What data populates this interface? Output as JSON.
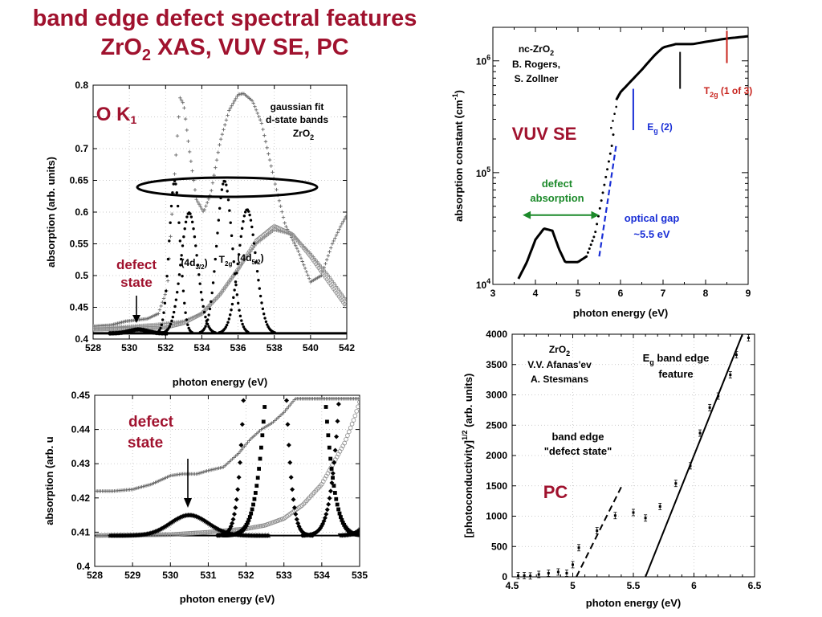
{
  "slide": {
    "title_line1": "band edge defect spectral features",
    "title_line2_a": "ZrO",
    "title_line2_sub": "2",
    "title_line2_b": " XAS, VUV SE, PC",
    "title_color": "#a0122e"
  },
  "chart_data": [
    {
      "id": "xas",
      "type": "scatter",
      "xlabel": "photon energy (eV)",
      "ylabel": "absorption (arb. units)",
      "xlim": [
        528,
        542
      ],
      "ylim": [
        0.4,
        0.8
      ],
      "xticks": [
        "528",
        "530",
        "532",
        "534",
        "536",
        "538",
        "540",
        "542"
      ],
      "yticks": [
        "0.4",
        "0.45",
        "0.5",
        "0.55",
        "0.6",
        "0.65",
        "0.7",
        "0.75",
        "0.8"
      ],
      "yticks_shown": [
        "0.4",
        "0.45",
        "0.5",
        "0.55",
        "0.6",
        "0.65",
        "0.7",
        "0.8"
      ],
      "grid": true,
      "label_big": "O K",
      "label_big_sub": "1",
      "gaussian_note": [
        "gaussian fit",
        "d-state bands",
        "ZrO",
        "2"
      ],
      "defect_label": [
        "defect",
        "state"
      ],
      "band_labels": {
        "t2g_prefix": "(4d",
        "t2g_prefix_sub": "3/2",
        "t2g_close": ")",
        "t2g": "T",
        "t2g_sub": "2g",
        "eg": "(4d",
        "eg_sub": "5/2",
        "eg_close": ")"
      },
      "series": [
        {
          "role": "measured",
          "marker": "plus",
          "color": "#666666",
          "x": [
            528,
            529,
            529.8,
            530.4,
            531,
            531.6,
            532.1,
            532.4,
            532.6,
            532.8,
            533.0,
            533.3,
            533.7,
            534.1,
            534.5,
            535.0,
            535.5,
            536.0,
            536.3,
            536.8,
            537.3,
            538.0,
            538.6,
            539.3,
            540.0,
            540.6,
            541.2,
            541.7,
            542
          ],
          "y": [
            0.42,
            0.422,
            0.428,
            0.43,
            0.432,
            0.44,
            0.48,
            0.62,
            0.7,
            0.78,
            0.77,
            0.7,
            0.62,
            0.6,
            0.63,
            0.71,
            0.76,
            0.785,
            0.787,
            0.775,
            0.74,
            0.65,
            0.58,
            0.54,
            0.49,
            0.5,
            0.55,
            0.58,
            0.595
          ]
        },
        {
          "role": "gaussian-tail",
          "marker": "circle",
          "color": "#8a8a8a",
          "x": [
            528,
            530,
            532,
            533,
            534,
            535,
            536,
            537,
            538,
            539,
            540,
            541,
            542
          ],
          "y": [
            0.415,
            0.416,
            0.418,
            0.425,
            0.44,
            0.47,
            0.51,
            0.555,
            0.578,
            0.565,
            0.53,
            0.49,
            0.45
          ]
        },
        {
          "role": "fit-background",
          "marker": "plus",
          "color": "#8a8a8a",
          "x": [
            528,
            530,
            531.5,
            533,
            534,
            535,
            536,
            537,
            538,
            539,
            540,
            541,
            542
          ],
          "y": [
            0.417,
            0.42,
            0.423,
            0.428,
            0.44,
            0.47,
            0.51,
            0.55,
            0.572,
            0.565,
            0.535,
            0.5,
            0.46
          ]
        }
      ],
      "peaks": [
        {
          "center": 530.5,
          "height": 0.006,
          "sigma": 0.5,
          "marker": "diamond"
        },
        {
          "center": 532.5,
          "height": 0.24,
          "sigma": 0.3,
          "marker": "dot"
        },
        {
          "center": 533.3,
          "height": 0.19,
          "sigma": 0.45,
          "marker": "dot"
        },
        {
          "center": 535.25,
          "height": 0.24,
          "sigma": 0.42,
          "marker": "dot"
        },
        {
          "center": 536.5,
          "height": 0.195,
          "sigma": 0.48,
          "marker": "dot"
        }
      ]
    },
    {
      "id": "vuv",
      "type": "line",
      "xlabel": "photon energy (eV)",
      "ylabel": "absorption constant (cm",
      "ylabel_sup": "-1",
      "ylabel_close": ")",
      "xlim": [
        3,
        9
      ],
      "ylim_log10": [
        4,
        6.3
      ],
      "yscale": "log",
      "xticks": [
        "3",
        "4",
        "5",
        "6",
        "7",
        "8",
        "9"
      ],
      "yticks": [
        {
          "base": "10",
          "exp": "4",
          "v": 4
        },
        {
          "base": "10",
          "exp": "5",
          "v": 5
        },
        {
          "base": "10",
          "exp": "6",
          "v": 6
        }
      ],
      "grid": false,
      "source": [
        "nc-ZrO",
        "2",
        "B. Rogers,",
        "S. Zollner"
      ],
      "tag": "VUV SE",
      "defect_label": [
        "defect",
        "absorption"
      ],
      "optical_gap": [
        "optical gap",
        "~5.5 eV"
      ],
      "eg_label": {
        "main": "E",
        "sub": "g",
        "after": "  (2)"
      },
      "t2g_label": {
        "main": "T",
        "sub": "2g",
        "after": "  (1 of 3)"
      },
      "series": [
        {
          "name": "solid",
          "x": [
            3.6,
            3.8,
            4.0,
            4.2,
            4.4,
            4.55,
            4.7,
            5.0,
            5.2
          ],
          "log10y": [
            4.05,
            4.2,
            4.4,
            4.5,
            4.48,
            4.32,
            4.2,
            4.2,
            4.25
          ]
        },
        {
          "name": "dotted",
          "x": [
            5.2,
            5.4,
            5.6,
            5.8,
            5.85
          ],
          "log10y": [
            4.25,
            4.45,
            4.85,
            5.25,
            5.4
          ]
        },
        {
          "name": "solid-upper",
          "x": [
            5.9,
            6.0,
            6.2,
            6.5,
            6.8,
            7.0,
            7.3,
            7.7,
            8.0,
            8.5,
            9.0
          ],
          "log10y": [
            5.65,
            5.72,
            5.8,
            5.92,
            6.05,
            6.12,
            6.15,
            6.15,
            6.17,
            6.2,
            6.22
          ]
        }
      ],
      "markers": [
        {
          "x": 6.3,
          "log10y_low": 5.38,
          "log10y_high": 5.75,
          "color": "#1a2fd6",
          "label": "Eg"
        },
        {
          "x": 7.4,
          "log10y_low": 5.75,
          "log10y_high": 6.08,
          "color": "#111111",
          "label": ""
        },
        {
          "x": 8.5,
          "log10y_low": 5.98,
          "log10y_high": 6.27,
          "color": "#c8241e",
          "label": "T2g"
        }
      ],
      "gap_line": {
        "x1": 5.5,
        "log10y1": 4.25,
        "x2": 5.9,
        "log10y2": 5.25,
        "color": "#1a2fd6"
      },
      "defect_arrow": {
        "x1": 3.7,
        "x2": 5.5,
        "log10y": 4.62,
        "color": "#1c8a2a"
      }
    },
    {
      "id": "xas-zoom",
      "type": "scatter",
      "xlabel": "photon energy (eV)",
      "ylabel": "absorption (arb. u",
      "xlim": [
        528,
        535
      ],
      "ylim": [
        0.4,
        0.45
      ],
      "xticks": [
        "528",
        "529",
        "530",
        "531",
        "532",
        "533",
        "534",
        "535"
      ],
      "yticks": [
        "0.4",
        "0.41",
        "0.42",
        "0.43",
        "0.44",
        "0.45"
      ],
      "grid": true,
      "defect_label": [
        "defect",
        "state"
      ],
      "series": [
        {
          "role": "measured",
          "marker": "plus",
          "color": "#666666",
          "x": [
            528,
            528.5,
            529,
            529.5,
            530,
            530.3,
            530.7,
            531,
            531.4,
            531.8,
            532.1,
            532.4,
            532.7,
            533.0,
            533.3
          ],
          "y": [
            0.422,
            0.422,
            0.4225,
            0.424,
            0.4265,
            0.427,
            0.427,
            0.428,
            0.429,
            0.433,
            0.437,
            0.44,
            0.442,
            0.445,
            0.449
          ]
        },
        {
          "role": "gaussian-tail",
          "marker": "circle",
          "color": "#8a8a8a",
          "x": [
            528,
            530,
            531,
            532,
            532.5,
            533,
            533.5,
            534,
            534.3,
            534.6,
            534.85,
            535
          ],
          "y": [
            0.409,
            0.4093,
            0.41,
            0.411,
            0.412,
            0.414,
            0.418,
            0.424,
            0.43,
            0.436,
            0.443,
            0.448
          ]
        }
      ],
      "peaks": [
        {
          "center": 530.5,
          "height": 0.006,
          "sigma": 0.5,
          "marker": "star"
        },
        {
          "center": 532.5,
          "height": 0.24,
          "sigma": 0.3,
          "marker": "diamond"
        },
        {
          "center": 533.3,
          "height": 0.19,
          "sigma": 0.45,
          "marker": "square"
        },
        {
          "center": 535.25,
          "height": 0.24,
          "sigma": 0.42,
          "marker": "diamond"
        },
        {
          "center": 536.5,
          "height": 0.195,
          "sigma": 0.48,
          "marker": "triangle"
        }
      ],
      "baseline": 0.409
    },
    {
      "id": "pc",
      "type": "scatter",
      "xlabel": "photon energy (eV)",
      "ylabel": "[photoconductivity]",
      "ylabel_sup": "1/2",
      "ylabel_after": " (arb. units)",
      "xlim": [
        4.5,
        6.5
      ],
      "ylim": [
        0,
        4000
      ],
      "xticks": [
        "4.5",
        "5",
        "5.5",
        "6",
        "6.5"
      ],
      "yticks": [
        "0",
        "500",
        "1000",
        "1500",
        "2000",
        "2500",
        "3000",
        "3500",
        "4000"
      ],
      "grid": true,
      "source": [
        "ZrO",
        "2",
        "V.V. Afanas'ev",
        "A. Stesmans"
      ],
      "tag": "PC",
      "feature_label": {
        "main": "E",
        "sub": "g",
        "after": " band edge",
        "line2": "feature"
      },
      "defect_label": [
        "band edge",
        "\"defect state\""
      ],
      "points": {
        "x": [
          4.55,
          4.6,
          4.65,
          4.72,
          4.8,
          4.88,
          4.95,
          5.0,
          5.05,
          5.2,
          5.35,
          5.5,
          5.6,
          5.72,
          5.85,
          5.97,
          6.05,
          6.13,
          6.2,
          6.3,
          6.35,
          6.45
        ],
        "y": [
          20,
          20,
          15,
          40,
          60,
          80,
          60,
          200,
          480,
          760,
          1010,
          1060,
          970,
          1160,
          1540,
          1830,
          2370,
          2790,
          2980,
          3330,
          3660,
          3940
        ]
      },
      "fit_line": {
        "x1": 5.6,
        "y1": 0,
        "x2": 6.4,
        "y2": 4000
      },
      "defect_line": {
        "x1": 5.03,
        "y1": 0,
        "x2": 5.4,
        "y2": 1480
      }
    }
  ]
}
